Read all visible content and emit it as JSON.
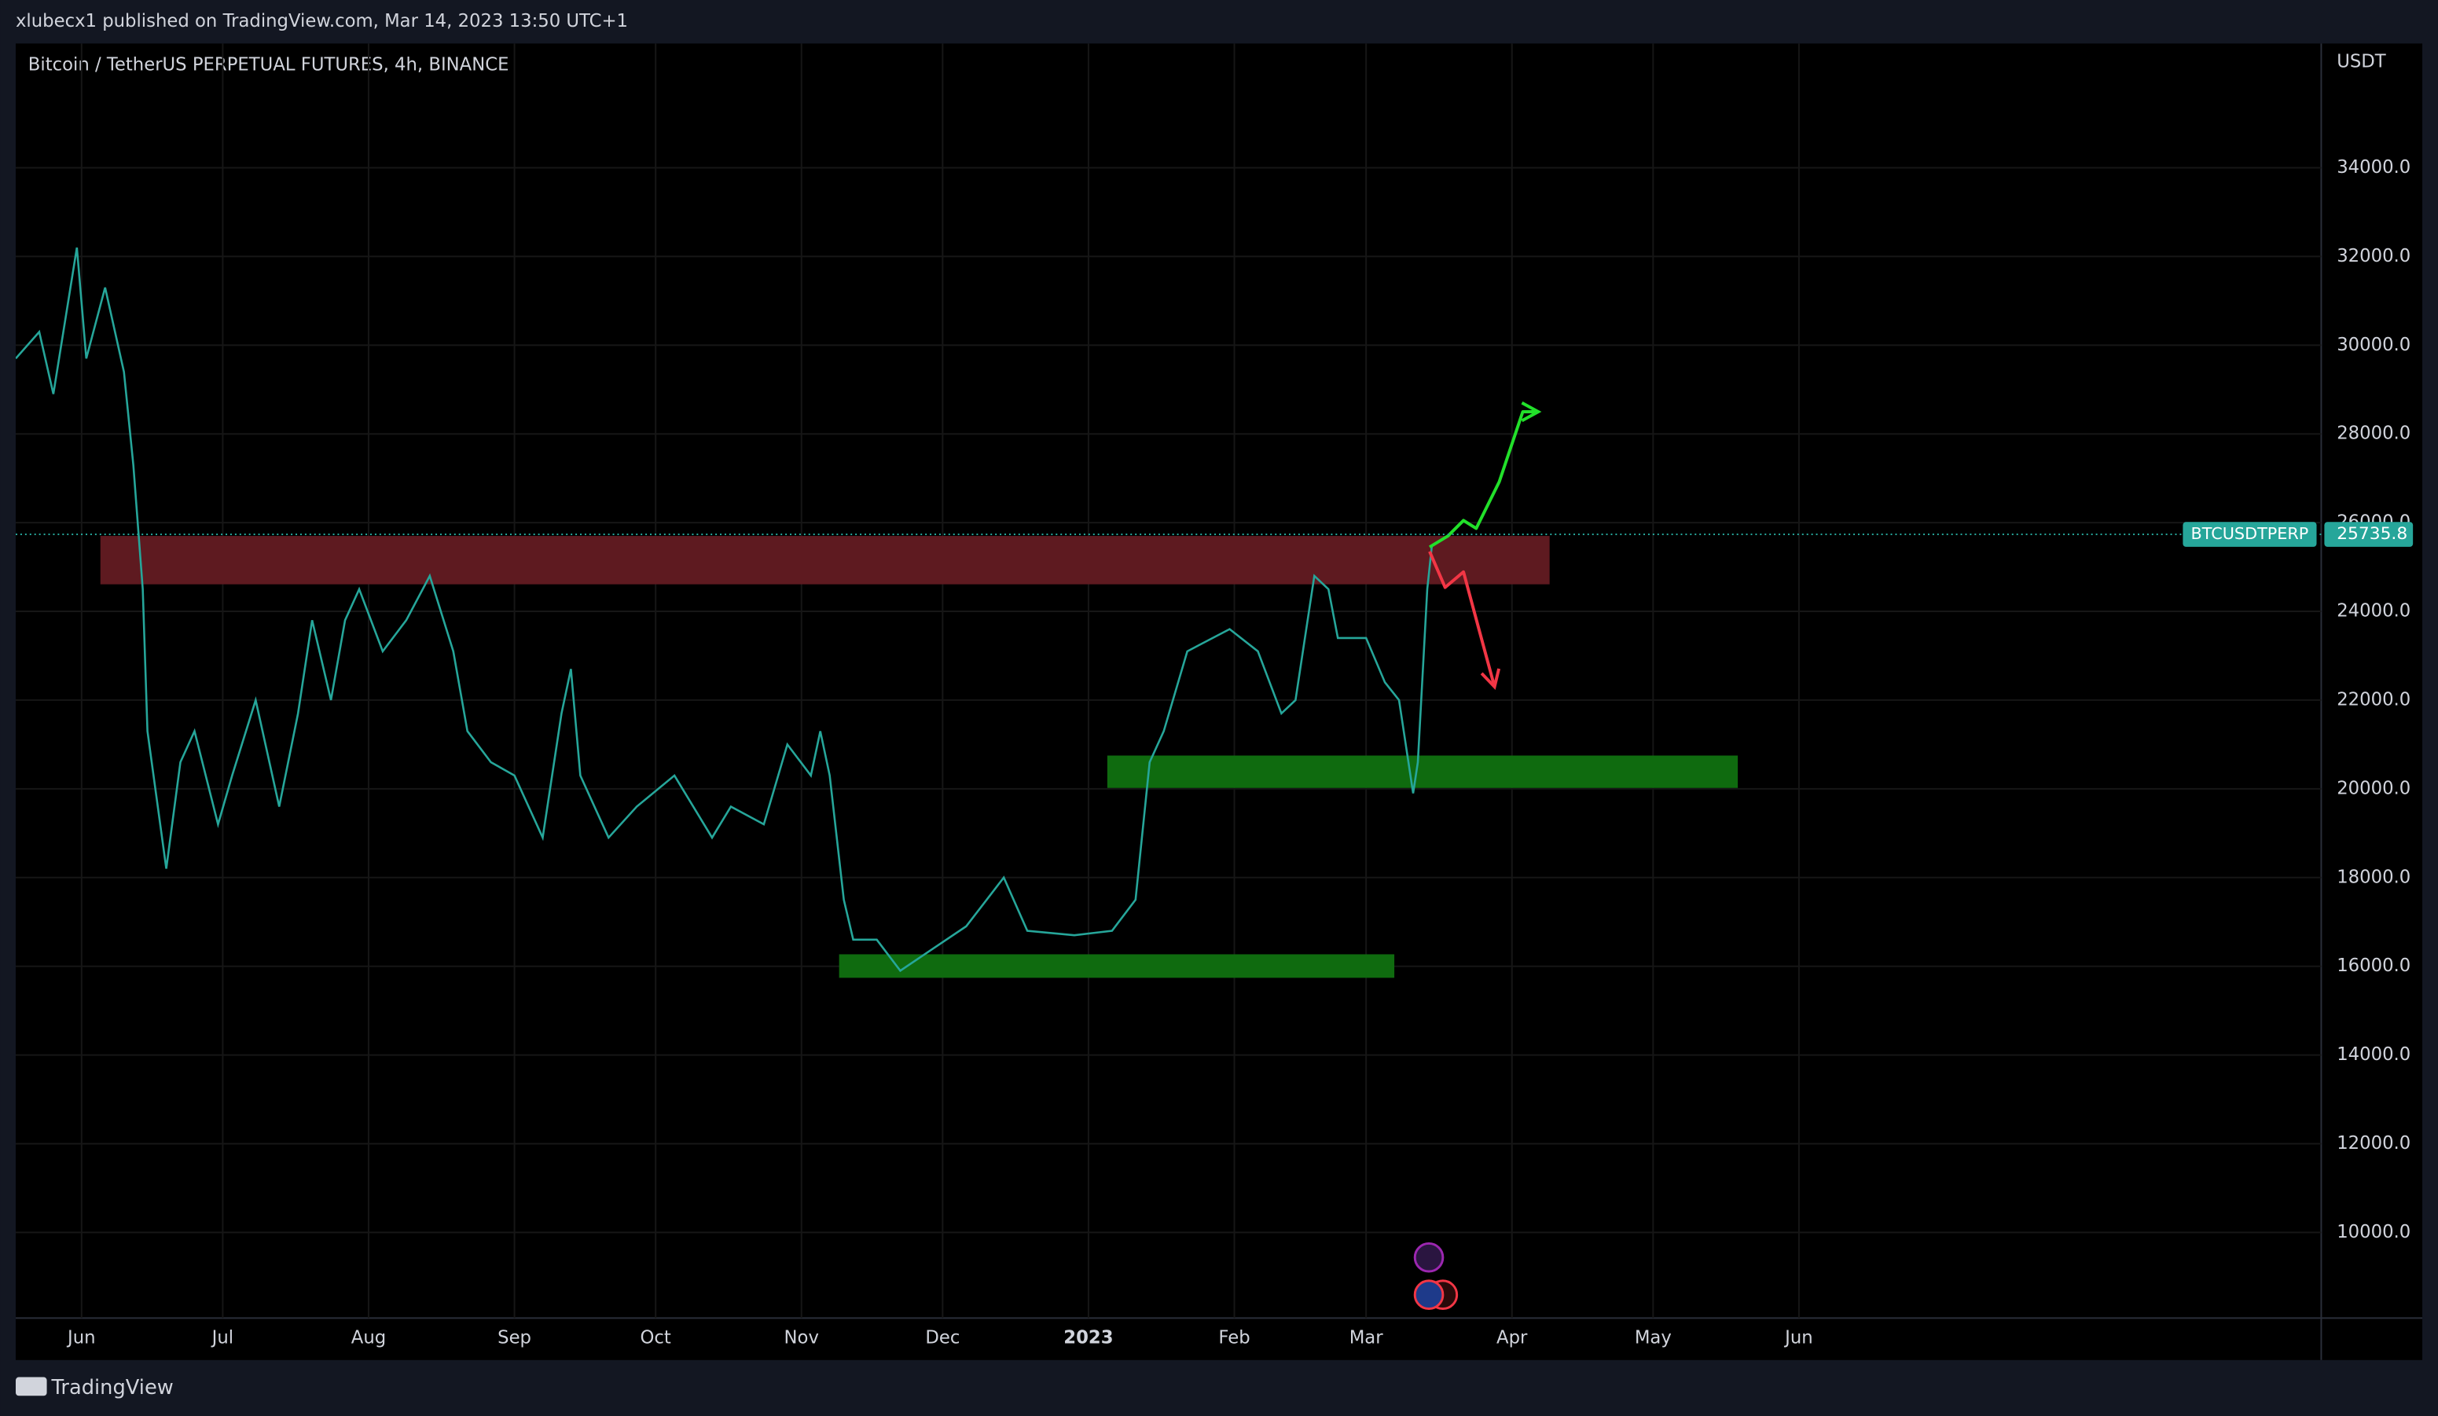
{
  "header": "xlubecx1 published on TradingView.com, Mar 14, 2023 13:50 UTC+1",
  "footer": "TradingView",
  "chart_data": {
    "type": "line",
    "title": "Bitcoin / TetherUS PERPETUAL FUTURES, 4h, BINANCE",
    "y_unit": "USDT",
    "xlim": [
      -14,
      476
    ],
    "ylim": [
      8070,
      36800
    ],
    "xticks": [
      {
        "value": 0,
        "label": "Jun"
      },
      {
        "value": 30,
        "label": "Jul"
      },
      {
        "value": 61,
        "label": "Aug"
      },
      {
        "value": 92,
        "label": "Sep"
      },
      {
        "value": 122,
        "label": "Oct"
      },
      {
        "value": 153,
        "label": "Nov"
      },
      {
        "value": 183,
        "label": "Dec"
      },
      {
        "value": 214,
        "label": "2023"
      },
      {
        "value": 245,
        "label": "Feb"
      },
      {
        "value": 273,
        "label": "Mar"
      },
      {
        "value": 304,
        "label": "Apr"
      },
      {
        "value": 334,
        "label": "May"
      },
      {
        "value": 365,
        "label": "Jun"
      }
    ],
    "yticks": [
      {
        "value": 10000,
        "label": "10000.0"
      },
      {
        "value": 12000,
        "label": "12000.0"
      },
      {
        "value": 14000,
        "label": "14000.0"
      },
      {
        "value": 16000,
        "label": "16000.0"
      },
      {
        "value": 18000,
        "label": "18000.0"
      },
      {
        "value": 20000,
        "label": "20000.0"
      },
      {
        "value": 22000,
        "label": "22000.0"
      },
      {
        "value": 24000,
        "label": "24000.0"
      },
      {
        "value": 26000,
        "label": "26000.0"
      },
      {
        "value": 28000,
        "label": "28000.0"
      },
      {
        "value": 30000,
        "label": "30000.0"
      },
      {
        "value": 32000,
        "label": "32000.0"
      },
      {
        "value": 34000,
        "label": "34000.0"
      }
    ],
    "grid": true,
    "series": [
      {
        "name": "BTCUSDTPERP",
        "color": "#26a69a",
        "x": [
          -14,
          -9,
          -6,
          -1,
          1,
          5,
          9,
          11,
          13,
          14,
          18,
          21,
          24,
          29,
          32,
          37,
          42,
          46,
          49,
          53,
          56,
          59,
          64,
          69,
          74,
          79,
          82,
          87,
          92,
          98,
          102,
          104,
          106,
          112,
          118,
          126,
          134,
          138,
          145,
          150,
          155,
          157,
          159,
          162,
          164,
          169,
          174,
          181,
          188,
          196,
          201,
          211,
          219,
          224,
          227,
          230,
          235,
          244,
          250,
          255,
          258,
          262,
          265,
          267,
          273,
          277,
          280,
          283,
          284,
          286,
          287
        ],
        "values": [
          29700,
          30300,
          28900,
          32200,
          29700,
          31300,
          29400,
          27300,
          24500,
          21300,
          18200,
          20600,
          21300,
          19200,
          20300,
          22000,
          19600,
          21700,
          23800,
          22000,
          23800,
          24500,
          23100,
          23800,
          24800,
          23100,
          21300,
          20600,
          20300,
          18900,
          21700,
          22700,
          20300,
          18900,
          19600,
          20300,
          18900,
          19600,
          19200,
          21000,
          20300,
          21300,
          20300,
          17500,
          16600,
          16600,
          15900,
          16400,
          16900,
          18000,
          16800,
          16700,
          16800,
          17500,
          20600,
          21300,
          23100,
          23600,
          23100,
          21700,
          22000,
          24800,
          24500,
          23400,
          23400,
          22400,
          22000,
          19900,
          20600,
          24500,
          25500
        ]
      }
    ],
    "last_price": 25735.8,
    "zones": [
      {
        "color": "#5e1a20",
        "x": [
          4,
          312
        ],
        "y": [
          24610,
          25700
        ]
      },
      {
        "color": "#0f6b0f",
        "x": [
          218,
          352
        ],
        "y": [
          20020,
          20750
        ]
      },
      {
        "color": "#0f6b0f",
        "x": [
          161,
          279
        ],
        "y": [
          15740,
          16270
        ]
      }
    ],
    "projections": [
      {
        "color": "#22e02a",
        "x": [
          286.5,
          290.4,
          293.7,
          296.4,
          301.3,
          306.3,
          309.6
        ],
        "y": [
          25450,
          25700,
          26050,
          25870,
          26920,
          28500,
          28500
        ]
      },
      {
        "color": "#f23645",
        "x": [
          286.5,
          289.8,
          293.7,
          297,
          300.3
        ],
        "y": [
          25350,
          24540,
          24890,
          23590,
          22300
        ]
      }
    ]
  }
}
